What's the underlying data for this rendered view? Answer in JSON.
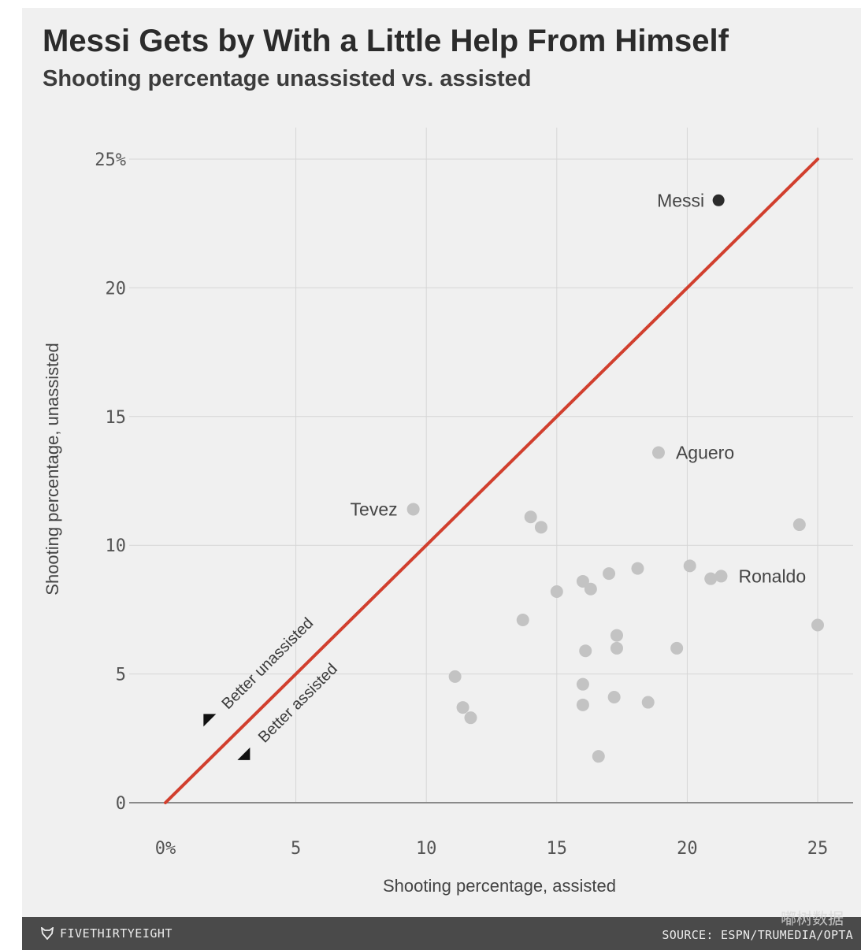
{
  "header": {
    "title": "Messi Gets by With a Little Help From Himself",
    "subtitle": "Shooting percentage unassisted vs. assisted"
  },
  "footer": {
    "brand": "FIVETHIRTYEIGHT",
    "source": "SOURCE: ESPN/TRUMEDIA/OPTA",
    "watermark": "嘟树数据"
  },
  "colors": {
    "diagonal": "#d13f2e",
    "highlight_point": "#2b2b2b",
    "point": "#c3c3c3",
    "grid": "#d6d6d6",
    "footer_bg": "#4a4a4a"
  },
  "chart_data": {
    "type": "scatter",
    "title": "Messi Gets by With a Little Help From Himself",
    "subtitle": "Shooting percentage unassisted vs. assisted",
    "xlabel": "Shooting percentage, assisted",
    "ylabel": "Shooting percentage, unassisted",
    "xlim": [
      0,
      25
    ],
    "ylim": [
      0,
      25
    ],
    "grid": true,
    "x_ticks": [
      {
        "value": 0,
        "label": "0%"
      },
      {
        "value": 5,
        "label": "5"
      },
      {
        "value": 10,
        "label": "10"
      },
      {
        "value": 15,
        "label": "15"
      },
      {
        "value": 20,
        "label": "20"
      },
      {
        "value": 25,
        "label": "25"
      }
    ],
    "y_ticks": [
      {
        "value": 0,
        "label": "0"
      },
      {
        "value": 5,
        "label": "5"
      },
      {
        "value": 10,
        "label": "10"
      },
      {
        "value": 15,
        "label": "15"
      },
      {
        "value": 20,
        "label": "20"
      },
      {
        "value": 25,
        "label": "25%"
      }
    ],
    "reference_line": {
      "from": [
        0,
        0
      ],
      "to": [
        25,
        25
      ]
    },
    "annotations": {
      "above": "Better unassisted",
      "below": "Better assisted"
    },
    "points": [
      {
        "x": 21.2,
        "y": 23.4,
        "label": "Messi",
        "highlight": true
      },
      {
        "x": 18.9,
        "y": 13.6,
        "label": "Aguero"
      },
      {
        "x": 9.5,
        "y": 11.4,
        "label": "Tevez"
      },
      {
        "x": 21.3,
        "y": 8.8,
        "label": "Ronaldo"
      },
      {
        "x": 20.9,
        "y": 8.7
      },
      {
        "x": 14.0,
        "y": 11.1
      },
      {
        "x": 14.4,
        "y": 10.7
      },
      {
        "x": 24.3,
        "y": 10.8
      },
      {
        "x": 20.1,
        "y": 9.2
      },
      {
        "x": 18.1,
        "y": 9.1
      },
      {
        "x": 17.0,
        "y": 8.9
      },
      {
        "x": 16.0,
        "y": 8.6
      },
      {
        "x": 16.3,
        "y": 8.3
      },
      {
        "x": 15.0,
        "y": 8.2
      },
      {
        "x": 13.7,
        "y": 7.1
      },
      {
        "x": 25.0,
        "y": 6.9
      },
      {
        "x": 17.3,
        "y": 6.5
      },
      {
        "x": 17.3,
        "y": 6.0
      },
      {
        "x": 16.1,
        "y": 5.9
      },
      {
        "x": 19.6,
        "y": 6.0
      },
      {
        "x": 11.1,
        "y": 4.9
      },
      {
        "x": 16.0,
        "y": 4.6
      },
      {
        "x": 17.2,
        "y": 4.1
      },
      {
        "x": 18.5,
        "y": 3.9
      },
      {
        "x": 16.0,
        "y": 3.8
      },
      {
        "x": 11.4,
        "y": 3.7
      },
      {
        "x": 11.7,
        "y": 3.3
      },
      {
        "x": 16.6,
        "y": 1.8
      }
    ]
  }
}
